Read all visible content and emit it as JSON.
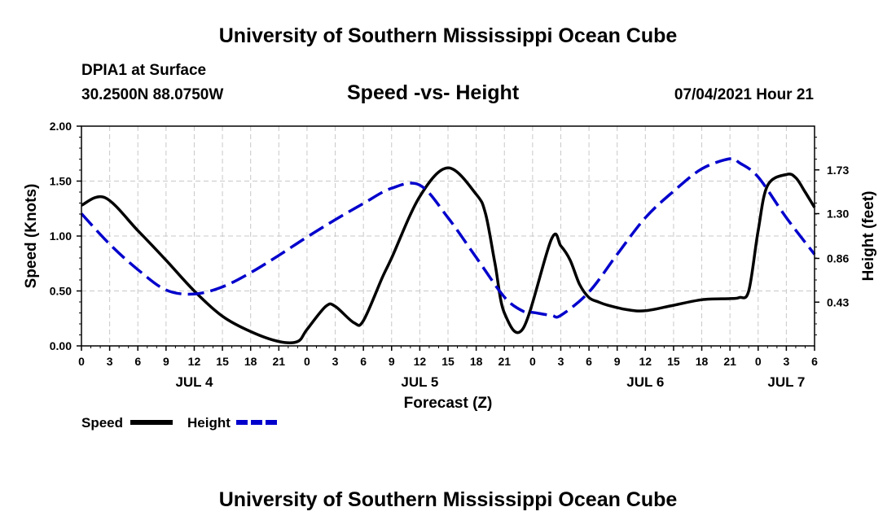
{
  "header": {
    "org_title": "University of Southern Mississippi Ocean Cube",
    "station": "DPIA1 at Surface",
    "coords": "30.2500N  88.0750W",
    "forecast_time": "07/04/2021 Hour 21"
  },
  "footer": {
    "org_title": "University of Southern Mississippi Ocean Cube"
  },
  "colors": {
    "speed": "#000000",
    "height": "#0000cc",
    "grid": "#c8c8c8"
  },
  "chart_data": {
    "type": "line",
    "title": "Speed -vs- Height",
    "xlabel": "Forecast (Z)",
    "ylabel_left": "Speed (Knots)",
    "ylabel_right": "Height (feet)",
    "x_range_hours": [
      0,
      78
    ],
    "x_tick_step_hours": 3,
    "x_tick_labels": [
      "0",
      "3",
      "6",
      "9",
      "12",
      "15",
      "18",
      "21",
      "0",
      "3",
      "6",
      "9",
      "12",
      "15",
      "18",
      "21",
      "0",
      "3",
      "6",
      "9",
      "12",
      "15",
      "18",
      "21",
      "0",
      "3",
      "6"
    ],
    "day_labels": [
      {
        "label": "JUL 4",
        "hour": 12
      },
      {
        "label": "JUL 5",
        "hour": 36
      },
      {
        "label": "JUL 6",
        "hour": 60
      },
      {
        "label": "JUL 7",
        "hour": 75
      }
    ],
    "ylim_left": [
      0,
      2
    ],
    "y_ticks_left": [
      0,
      0.5,
      1,
      1.5,
      2
    ],
    "y_tick_labels_left": [
      "0.00",
      "0.50",
      "1.00",
      "1.50",
      "2.00"
    ],
    "ylim_right": [
      0,
      2.16
    ],
    "y_ticks_right": [
      0.43,
      0.86,
      1.3,
      1.73
    ],
    "y_tick_labels_right": [
      "0.43",
      "0.86",
      "1.30",
      "1.73"
    ],
    "grid": true,
    "legend": {
      "position": "bottom-left",
      "entries": [
        "Speed",
        "Height"
      ]
    },
    "series": [
      {
        "name": "Speed",
        "axis": "left",
        "style": "solid",
        "x": [
          0,
          2.5,
          6,
          9,
          12,
          15,
          18,
          21,
          23,
          24,
          26,
          27,
          29,
          30,
          32,
          33,
          36,
          39,
          42,
          43,
          44,
          45,
          47,
          50,
          51,
          52,
          53,
          54,
          55,
          56,
          58,
          60,
          63,
          66,
          69,
          70,
          71,
          72,
          73,
          75,
          76,
          77,
          78
        ],
        "y": [
          1.28,
          1.35,
          1.05,
          0.78,
          0.5,
          0.27,
          0.13,
          0.04,
          0.04,
          0.15,
          0.36,
          0.36,
          0.21,
          0.23,
          0.62,
          0.8,
          1.36,
          1.62,
          1.38,
          1.2,
          0.75,
          0.3,
          0.16,
          0.97,
          0.91,
          0.78,
          0.56,
          0.44,
          0.4,
          0.37,
          0.33,
          0.32,
          0.37,
          0.42,
          0.43,
          0.44,
          0.5,
          1.05,
          1.46,
          1.56,
          1.53,
          1.4,
          1.26
        ]
      },
      {
        "name": "Height",
        "axis": "right",
        "style": "dashed",
        "x": [
          0,
          3,
          6,
          9,
          12,
          15,
          18,
          21,
          24,
          27,
          30,
          33,
          36,
          39,
          42,
          45,
          47,
          48,
          50,
          51,
          54,
          57,
          60,
          63,
          66,
          69,
          70,
          72,
          75,
          78
        ],
        "y": [
          1.3,
          1.0,
          0.75,
          0.55,
          0.51,
          0.58,
          0.72,
          0.89,
          1.07,
          1.24,
          1.4,
          1.55,
          1.58,
          1.26,
          0.87,
          0.48,
          0.34,
          0.33,
          0.3,
          0.3,
          0.53,
          0.9,
          1.26,
          1.52,
          1.74,
          1.84,
          1.8,
          1.66,
          1.26,
          0.9
        ]
      }
    ]
  }
}
